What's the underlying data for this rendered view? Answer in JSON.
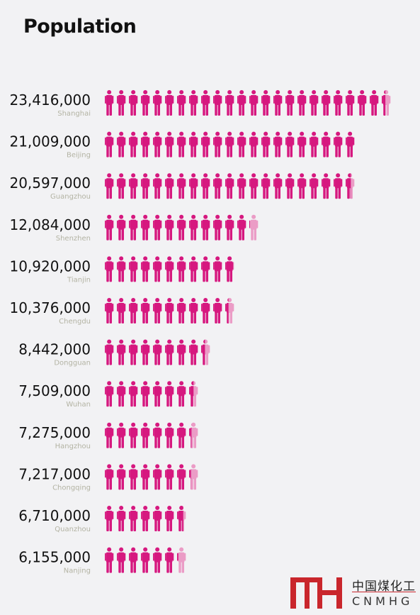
{
  "title": "Population",
  "chart_data": {
    "type": "pictograph",
    "unit_per_icon": 1000000,
    "categories": [
      "Shanghai",
      "Beijing",
      "Guangzhou",
      "Shenzhen",
      "Tianjin",
      "Chengdu",
      "Dongguan",
      "Wuhan",
      "Hangzhou",
      "Chongqing",
      "Quanzhou",
      "Nanjing"
    ],
    "value_labels": [
      "23,416,000",
      "21,009,000",
      "20,597,000",
      "12,084,000",
      "10,920,000",
      "10,376,000",
      "8,442,000",
      "7,509,000",
      "7,275,000",
      "7,217,000",
      "6,710,000",
      "6,155,000"
    ],
    "values": [
      23416000,
      21009000,
      20597000,
      12084000,
      10920000,
      10376000,
      8442000,
      7509000,
      7275000,
      7217000,
      6710000,
      6155000
    ],
    "colors": {
      "full": "#d6187f",
      "partial": "#eb9cc6"
    }
  },
  "logo": {
    "cn": "中国煤化工",
    "en": "CNMHG"
  }
}
